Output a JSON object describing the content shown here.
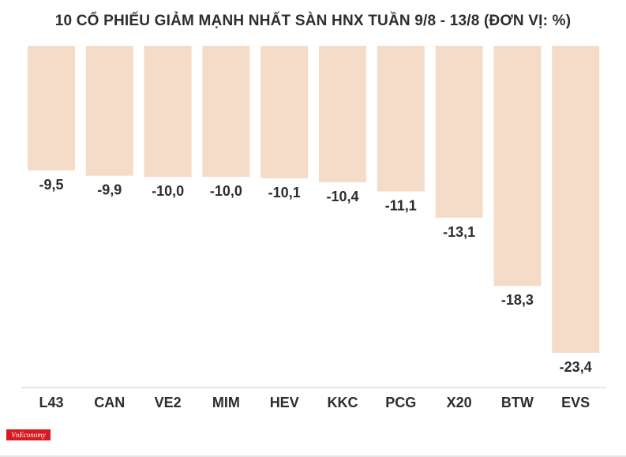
{
  "chart_data": {
    "type": "bar",
    "title": "10 CỔ PHIẾU GIẢM MẠNH NHẤT SÀN HNX TUẦN 9/8 - 13/8 (ĐƠN VỊ: %)",
    "categories": [
      "L43",
      "CAN",
      "VE2",
      "MIM",
      "HEV",
      "KKC",
      "PCG",
      "X20",
      "BTW",
      "EVS"
    ],
    "values": [
      -9.5,
      -9.9,
      -10.0,
      -10.0,
      -10.1,
      -10.4,
      -11.1,
      -13.1,
      -18.3,
      -23.4
    ],
    "labels": [
      "-9,5",
      "-9,9",
      "-10,0",
      "-10,0",
      "-10,1",
      "-10,4",
      "-11,1",
      "-13,1",
      "-18,3",
      "-23,4"
    ],
    "xlabel": "",
    "ylabel": "",
    "ylim": [
      -23.4,
      0
    ],
    "grid": false,
    "bar_color": "#f5dcc9",
    "text_color": "#2d2d2d",
    "axis_color": "#cfcfcf"
  },
  "brand": {
    "logo_text": "VnEconomy",
    "logo_color": "#d71920"
  }
}
